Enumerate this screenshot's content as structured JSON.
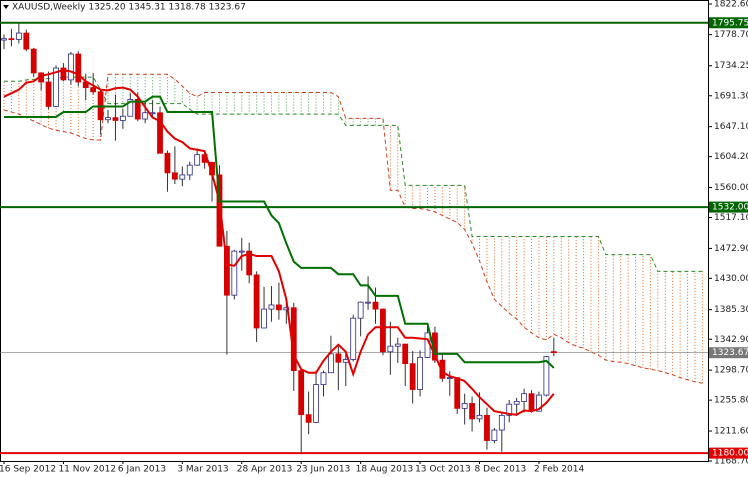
{
  "chart_data": {
    "type": "candlestick",
    "title": "XAUUSD,Weekly  1325.20 1345.31 1318.78 1323.67",
    "categories": [
      "16 Sep 2012",
      null,
      null,
      null,
      null,
      null,
      null,
      null,
      "11 Nov 2012",
      null,
      null,
      null,
      null,
      null,
      null,
      null,
      "6 Jan 2013",
      null,
      null,
      null,
      null,
      null,
      null,
      null,
      "3 Mar 2013",
      null,
      null,
      null,
      null,
      null,
      null,
      null,
      "28 Apr 2013",
      null,
      null,
      null,
      null,
      null,
      null,
      null,
      "23 Jun 2013",
      null,
      null,
      null,
      null,
      null,
      null,
      null,
      "18 Aug 2013",
      null,
      null,
      null,
      null,
      null,
      null,
      null,
      "13 Oct 2013",
      null,
      null,
      null,
      null,
      null,
      null,
      null,
      "8 Dec 2013",
      null,
      null,
      null,
      null,
      null,
      null,
      null,
      "2 Feb 2014",
      null,
      null,
      null,
      null,
      null,
      null,
      null,
      null,
      null,
      null,
      null,
      null,
      null,
      null,
      null,
      null,
      null,
      null,
      null,
      null,
      null,
      null
    ],
    "open": [
      1771,
      1773,
      1772,
      1781,
      1758,
      1724,
      1711,
      1676,
      1731,
      1714,
      1751,
      1711,
      1703,
      1697,
      1657,
      1660,
      1656,
      1662,
      1686,
      1658,
      1667,
      1667,
      1609,
      1581,
      1572,
      1578,
      1592,
      1607,
      1596,
      1578,
      1476,
      1406,
      1469,
      1469,
      1435,
      1359,
      1386,
      1392,
      1385,
      1388,
      1298,
      1235,
      1224,
      1278,
      1295,
      1322,
      1310,
      1314,
      1373,
      1396,
      1396,
      1386,
      1325,
      1333,
      1336,
      1308,
      1271,
      1317,
      1352,
      1313,
      1287,
      1288,
      1244,
      1251,
      1229,
      1234,
      1198,
      1213,
      1234,
      1250,
      1254,
      1265,
      1240,
      1263,
      1325.2,
      null,
      null,
      null,
      null,
      null,
      null,
      null,
      null,
      null,
      null,
      null,
      null,
      null,
      null,
      null,
      null,
      null,
      null,
      null,
      null
    ],
    "high": [
      1779,
      1787,
      1795.75,
      1786,
      1760,
      1725,
      1726,
      1735,
      1738,
      1754,
      1755,
      1723,
      1724,
      1701,
      1671,
      1693,
      1673,
      1695,
      1696,
      1684,
      1685,
      1676,
      1613,
      1619,
      1590,
      1597,
      1616,
      1611,
      1597,
      1592,
      1498,
      1471,
      1488,
      1481,
      1440,
      1418,
      1419,
      1424,
      1394,
      1395,
      1299,
      1268,
      1298,
      1298,
      1348,
      1333,
      1323,
      1378,
      1397,
      1433,
      1417,
      1387,
      1368,
      1345,
      1336,
      1326,
      1327,
      1361,
      1361,
      1321,
      1297,
      1288,
      1265,
      1261,
      1267,
      1245,
      1216,
      1238,
      1256,
      1259,
      1272,
      1270,
      1268,
      1319,
      1345.31,
      null,
      null,
      null,
      null,
      null,
      null,
      null,
      null,
      null,
      null,
      null,
      null,
      null,
      null,
      null,
      null,
      null,
      null,
      null,
      null
    ],
    "low": [
      1758,
      1762,
      1766,
      1755,
      1718,
      1699,
      1672,
      1676,
      1712,
      1707,
      1705,
      1685,
      1693,
      1636,
      1652,
      1627,
      1644,
      1662,
      1655,
      1652,
      1660,
      1609,
      1554,
      1565,
      1562,
      1571,
      1591,
      1587,
      1540,
      1476,
      1321,
      1400,
      1441,
      1423,
      1339,
      1359,
      1368,
      1371,
      1365,
      1269,
      1180,
      1207,
      1223,
      1261,
      1295,
      1270,
      1276,
      1311,
      1347,
      1385,
      1365,
      1320,
      1292,
      1309,
      1276,
      1251,
      1261,
      1316,
      1309,
      1282,
      1262,
      1236,
      1221,
      1211,
      1224,
      1185,
      1194,
      1182,
      1224,
      1233,
      1238,
      1238,
      1240,
      1261,
      1318.78,
      null,
      null,
      null,
      null,
      null,
      null,
      null,
      null,
      null,
      null,
      null,
      null,
      null,
      null,
      null,
      null,
      null,
      null,
      null,
      null
    ],
    "close": [
      1773,
      1772,
      1781,
      1758,
      1724,
      1711,
      1676,
      1731,
      1714,
      1751,
      1711,
      1703,
      1697,
      1657,
      1660,
      1656,
      1662,
      1686,
      1658,
      1667,
      1667,
      1609,
      1581,
      1572,
      1578,
      1592,
      1607,
      1596,
      1578,
      1476,
      1406,
      1469,
      1469,
      1435,
      1359,
      1386,
      1392,
      1385,
      1388,
      1298,
      1235,
      1224,
      1278,
      1295,
      1322,
      1310,
      1314,
      1373,
      1396,
      1396,
      1386,
      1325,
      1333,
      1336,
      1308,
      1271,
      1317,
      1352,
      1313,
      1287,
      1288,
      1244,
      1251,
      1229,
      1234,
      1198,
      1213,
      1234,
      1250,
      1254,
      1265,
      1240,
      1263,
      1318,
      1323.67,
      null,
      null,
      null,
      null,
      null,
      null,
      null,
      null,
      null,
      null,
      null,
      null,
      null,
      null,
      null,
      null,
      null,
      null,
      null,
      null
    ],
    "up_color": "#ffffff",
    "down_color": "#d40000",
    "up_edge": "#2a2a8a",
    "wick_color": "#333333",
    "lines": [
      {
        "color": "#e00000",
        "values": [
          1690,
          1695,
          1700,
          1710,
          1712,
          1720,
          1722,
          1725,
          1728,
          1726,
          1722,
          1712,
          1706,
          1700,
          1699,
          1702,
          1703,
          1700,
          1690,
          1675,
          1660,
          1655,
          1640,
          1630,
          1625,
          1616,
          1614,
          1612,
          1580,
          1540,
          1450,
          1448,
          1462,
          1465,
          1462,
          1462,
          1462,
          1440,
          1400,
          1320,
          1300,
          1295,
          1295,
          1312,
          1325,
          1335,
          1325,
          1293,
          1325,
          1350,
          1360,
          1360,
          1360,
          1360,
          1345,
          1345,
          1344,
          1343,
          1320,
          1296,
          1290,
          1287,
          1283,
          1272,
          1260,
          1250,
          1240,
          1238,
          1236,
          1235,
          1241,
          1240,
          1243,
          1252,
          1265,
          null,
          null,
          null,
          null,
          null,
          null,
          null,
          null,
          null,
          null,
          null,
          null,
          null,
          null,
          null,
          null,
          null,
          null,
          null,
          null
        ]
      },
      {
        "color": "#007000",
        "values": [
          1661,
          1661,
          1661,
          1661,
          1661,
          1661,
          1661,
          1661,
          1668,
          1668,
          1668,
          1668,
          1676,
          1676,
          1676,
          1676,
          1676,
          1683,
          1683,
          1683,
          1690,
          1690,
          1668,
          1668,
          1668,
          1668,
          1668,
          1668,
          1668,
          1540,
          1540,
          1540,
          1540,
          1540,
          1540,
          1540,
          1520,
          1509,
          1480,
          1454,
          1445,
          1445,
          1445,
          1445,
          1445,
          1436,
          1436,
          1436,
          1420,
          1420,
          1405,
          1405,
          1405,
          1405,
          1365,
          1365,
          1365,
          1365,
          1322,
          1322,
          1322,
          1322,
          1310,
          1310,
          1310,
          1310,
          1310,
          1310,
          1310,
          1310,
          1310,
          1310,
          1310,
          1312,
          1302,
          null,
          null,
          null,
          null,
          null,
          null,
          null,
          null,
          null,
          null,
          null,
          null,
          null,
          null,
          null,
          null,
          null,
          null,
          null,
          null
        ]
      }
    ],
    "cloud": {
      "span_a_color": "#d04020",
      "span_b_color": "#2a8a2a",
      "bull_color": "#4aa04a",
      "bear_color": "#e06a20",
      "span_a": [
        1671,
        1668,
        1665,
        1660,
        1655,
        1650,
        1645,
        1642,
        1640,
        1638,
        1634,
        1630,
        1628,
        1628,
        1722,
        1722,
        1722,
        1722,
        1722,
        1722,
        1722,
        1722,
        1722,
        1715,
        1705,
        1695,
        1690,
        1696,
        1696,
        1696,
        1696,
        1696,
        1696,
        1696,
        1696,
        1696,
        1696,
        1696,
        1696,
        1696,
        1696,
        1696,
        1696,
        1696,
        1696,
        1690,
        1659,
        1659,
        1659,
        1659,
        1659,
        1659,
        1556,
        1556,
        1532,
        1530,
        1530,
        1528,
        1525,
        1520,
        1515,
        1510,
        1500,
        1480,
        1455,
        1425,
        1400,
        1390,
        1380,
        1372,
        1360,
        1352,
        1345,
        1342,
        1350,
        1345,
        1338,
        1333,
        1330,
        1325,
        1320,
        1313,
        1311,
        1310,
        1308,
        1305,
        1302,
        1300,
        1298,
        1295,
        1292,
        1288,
        1285,
        1282,
        1280
      ],
      "span_b": [
        1712,
        1712,
        1712,
        1714,
        1715,
        1715,
        1716,
        1716,
        1718,
        1718,
        1718,
        1718,
        1718,
        1700,
        1680,
        1680,
        1680,
        1680,
        1680,
        1680,
        1680,
        1680,
        1680,
        1680,
        1680,
        1672,
        1665,
        1665,
        1665,
        1665,
        1665,
        1665,
        1665,
        1665,
        1665,
        1665,
        1665,
        1665,
        1665,
        1665,
        1665,
        1665,
        1665,
        1665,
        1665,
        1665,
        1649,
        1649,
        1649,
        1649,
        1649,
        1649,
        1649,
        1649,
        1563,
        1563,
        1563,
        1563,
        1563,
        1563,
        1563,
        1563,
        1563,
        1490,
        1490,
        1490,
        1490,
        1490,
        1490,
        1490,
        1490,
        1490,
        1490,
        1490,
        1490,
        1490,
        1490,
        1490,
        1490,
        1490,
        1490,
        1464,
        1464,
        1464,
        1464,
        1464,
        1464,
        1464,
        1440,
        1440,
        1440,
        1440,
        1440,
        1440,
        1440
      ]
    },
    "levels": [
      {
        "value": 1795.75,
        "label": "1795.75",
        "color": "#006400"
      },
      {
        "value": 1532,
        "label": "1532.00",
        "color": "#006400"
      },
      {
        "value": 1180,
        "label": "1180.00",
        "color": "#e00000"
      },
      {
        "value": 1323.67,
        "label": "1323.67",
        "color": "#777777"
      }
    ],
    "ylim": [
      1168.7,
      1822.6
    ],
    "yticks": [
      {
        "value": 1822.6,
        "label": "1822.60"
      },
      {
        "value": 1778.7,
        "label": "1778.70"
      },
      {
        "value": 1734.25,
        "label": "1734.25"
      },
      {
        "value": 1691.3,
        "label": "1691.30"
      },
      {
        "value": 1647.1,
        "label": "1647.10"
      },
      {
        "value": 1604.2,
        "label": "1604.20"
      },
      {
        "value": 1560,
        "label": "1560.00"
      },
      {
        "value": 1517.1,
        "label": "1517.10"
      },
      {
        "value": 1472.9,
        "label": "1472.90"
      },
      {
        "value": 1430,
        "label": "1430.00"
      },
      {
        "value": 1385.3,
        "label": "1385.30"
      },
      {
        "value": 1342.9,
        "label": "1342.90"
      },
      {
        "value": 1298.7,
        "label": "1298.70"
      },
      {
        "value": 1255.8,
        "label": "1255.80"
      },
      {
        "value": 1211.6,
        "label": "1211.60"
      },
      {
        "value": 1168.7,
        "label": "1168.70"
      }
    ]
  }
}
